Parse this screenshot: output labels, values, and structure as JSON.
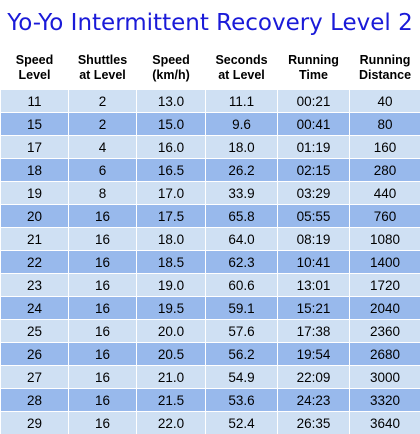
{
  "title": "Yo-Yo Intermittent Recovery Level 2",
  "colors": {
    "title": "#1a1ad8",
    "row_light": "#cfe0f3",
    "row_dark": "#98b9ec"
  },
  "columns": [
    {
      "line1": "Speed",
      "line2": "Level"
    },
    {
      "line1": "Shuttles",
      "line2": "at Level"
    },
    {
      "line1": "Speed",
      "line2": "(km/h)"
    },
    {
      "line1": "Seconds",
      "line2": "at Level"
    },
    {
      "line1": "Running",
      "line2": "Time"
    },
    {
      "line1": "Running",
      "line2": "Distance"
    }
  ],
  "rows": [
    [
      "11",
      "2",
      "13.0",
      "11.1",
      "00:21",
      "40"
    ],
    [
      "15",
      "2",
      "15.0",
      "9.6",
      "00:41",
      "80"
    ],
    [
      "17",
      "4",
      "16.0",
      "18.0",
      "01:19",
      "160"
    ],
    [
      "18",
      "6",
      "16.5",
      "26.2",
      "02:15",
      "280"
    ],
    [
      "19",
      "8",
      "17.0",
      "33.9",
      "03:29",
      "440"
    ],
    [
      "20",
      "16",
      "17.5",
      "65.8",
      "05:55",
      "760"
    ],
    [
      "21",
      "16",
      "18.0",
      "64.0",
      "08:19",
      "1080"
    ],
    [
      "22",
      "16",
      "18.5",
      "62.3",
      "10:41",
      "1400"
    ],
    [
      "23",
      "16",
      "19.0",
      "60.6",
      "13:01",
      "1720"
    ],
    [
      "24",
      "16",
      "19.5",
      "59.1",
      "15:21",
      "2040"
    ],
    [
      "25",
      "16",
      "20.0",
      "57.6",
      "17:38",
      "2360"
    ],
    [
      "26",
      "16",
      "20.5",
      "56.2",
      "19:54",
      "2680"
    ],
    [
      "27",
      "16",
      "21.0",
      "54.9",
      "22:09",
      "3000"
    ],
    [
      "28",
      "16",
      "21.5",
      "53.6",
      "24:23",
      "3320"
    ],
    [
      "29",
      "16",
      "22.0",
      "52.4",
      "26:35",
      "3640"
    ]
  ]
}
